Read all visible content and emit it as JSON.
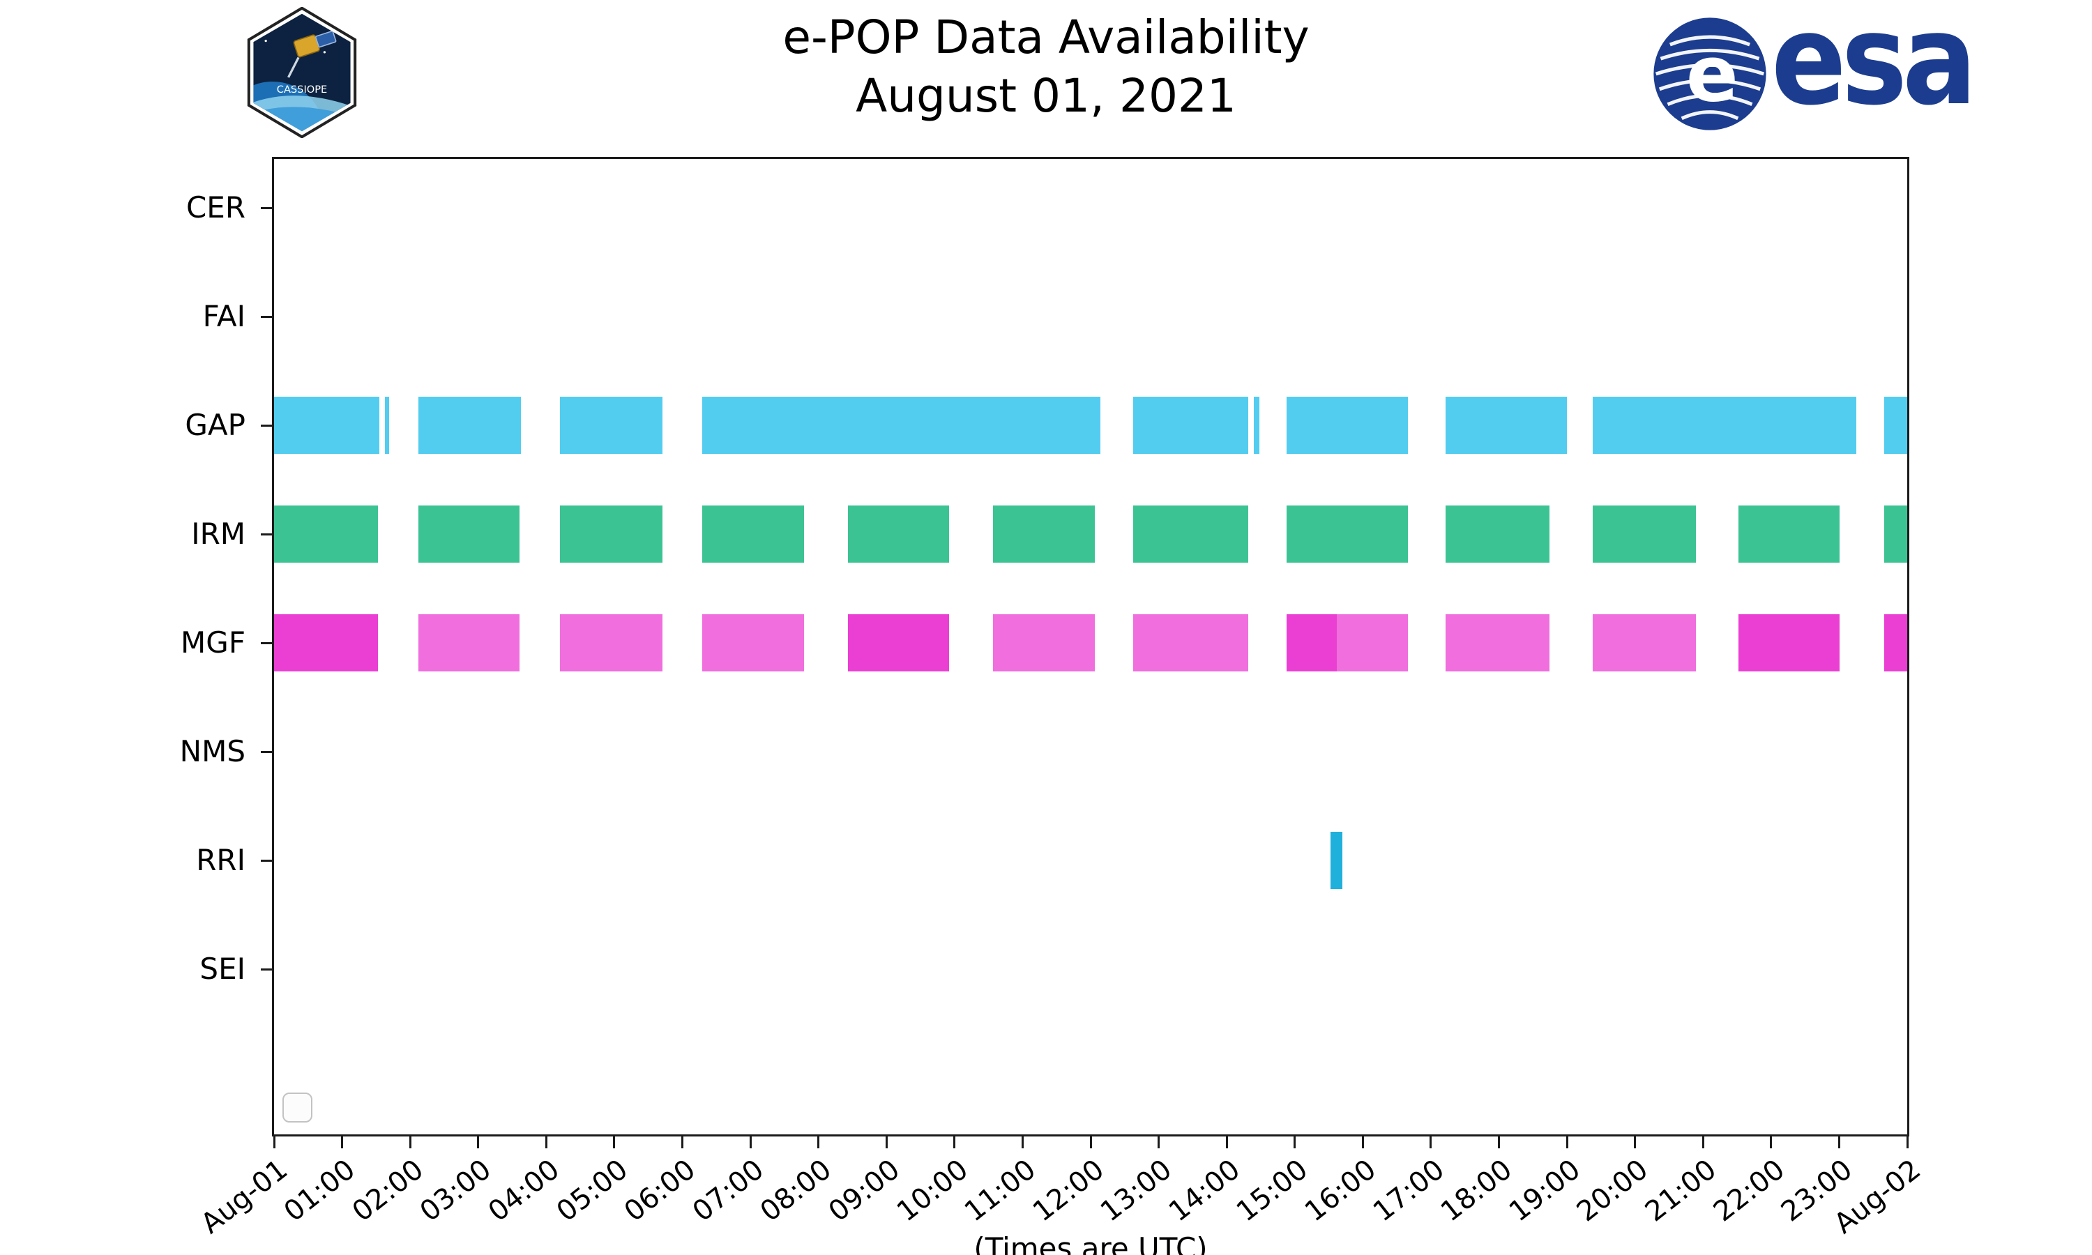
{
  "header": {
    "cassiope_text": "CASSIOPE",
    "esa_wordmark": "esa",
    "esa_blue": "#1c3d8f",
    "logos": {
      "left": "cassiope-mission-patch",
      "right": "esa-logo"
    }
  },
  "chart_data": {
    "type": "availability-timeline",
    "title": "e-POP Data Availability",
    "subtitle": "August 01, 2021",
    "xlabel": "(Times are UTC)",
    "x_start_hour": 0,
    "x_end_hour": 24,
    "x_ticks": [
      "Aug-01",
      "01:00",
      "02:00",
      "03:00",
      "04:00",
      "05:00",
      "06:00",
      "07:00",
      "08:00",
      "09:00",
      "10:00",
      "11:00",
      "12:00",
      "13:00",
      "14:00",
      "15:00",
      "16:00",
      "17:00",
      "18:00",
      "19:00",
      "20:00",
      "21:00",
      "22:00",
      "23:00",
      "Aug-02"
    ],
    "rows": [
      "CER",
      "FAI",
      "GAP",
      "IRM",
      "MGF",
      "NMS",
      "RRI",
      "SEI"
    ],
    "colors": {
      "gap": "#52cdf0",
      "irm": "#3cc394",
      "mgf": "#f06edd",
      "mgf_strong": "#ea3fd2",
      "rri": "#1fb0dc",
      "axis": "#1b1b1b"
    },
    "grid": false,
    "legend": "empty-box-bottom-left",
    "series": [
      {
        "row": "GAP",
        "color": "#52cdf0",
        "segments": [
          [
            0,
            1.55
          ],
          [
            1.63,
            1.69
          ],
          [
            2.12,
            3.63
          ],
          [
            4.2,
            5.71
          ],
          [
            6.29,
            12.14
          ],
          [
            12.63,
            14.32
          ],
          [
            14.4,
            14.48
          ],
          [
            14.88,
            16.66
          ],
          [
            17.22,
            19.0
          ],
          [
            19.38,
            23.25
          ],
          [
            23.66,
            24
          ]
        ]
      },
      {
        "row": "IRM",
        "color": "#3cc394",
        "segments": [
          [
            0,
            1.53
          ],
          [
            2.12,
            3.61
          ],
          [
            4.2,
            5.71
          ],
          [
            6.29,
            7.79
          ],
          [
            8.43,
            9.92
          ],
          [
            10.57,
            12.06
          ],
          [
            12.63,
            14.32
          ],
          [
            14.88,
            16.66
          ],
          [
            17.22,
            18.74
          ],
          [
            19.38,
            20.89
          ],
          [
            21.52,
            23.01
          ],
          [
            23.66,
            24
          ]
        ]
      },
      {
        "row": "MGF",
        "color": "#f06edd",
        "segments": [
          [
            0,
            1.53,
            "#ea3fd2"
          ],
          [
            2.12,
            3.61
          ],
          [
            4.2,
            5.71
          ],
          [
            6.29,
            7.79
          ],
          [
            8.43,
            9.92,
            "#ea3fd2"
          ],
          [
            10.57,
            12.06
          ],
          [
            12.63,
            14.32
          ],
          [
            14.88,
            15.62,
            "#ea3fd2"
          ],
          [
            15.62,
            16.66
          ],
          [
            17.22,
            18.74
          ],
          [
            19.38,
            20.89
          ],
          [
            21.52,
            23.01,
            "#ea3fd2"
          ],
          [
            23.66,
            24,
            "#ea3fd2"
          ]
        ]
      },
      {
        "row": "RRI",
        "color": "#1fb0dc",
        "segments": [
          [
            15.53,
            15.7
          ]
        ]
      }
    ]
  }
}
